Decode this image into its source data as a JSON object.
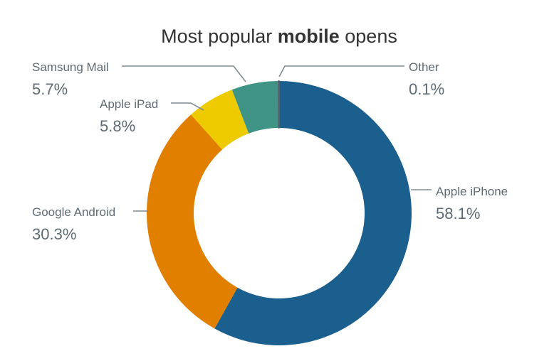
{
  "chart_data": {
    "type": "pie",
    "title_parts": [
      "Most popular ",
      "mobile",
      " opens"
    ],
    "categories": [
      "Apple iPhone",
      "Google Android",
      "Apple iPad",
      "Samsung Mail",
      "Other"
    ],
    "values": [
      58.1,
      30.3,
      5.8,
      5.7,
      0.1
    ],
    "value_labels": [
      "58.1%",
      "30.3%",
      "5.8%",
      "5.7%",
      "0.1%"
    ],
    "colors": [
      "#1a5f8e",
      "#e07f00",
      "#eecb00",
      "#3f9486",
      "#59616b"
    ],
    "donut": true,
    "legend": "none"
  }
}
